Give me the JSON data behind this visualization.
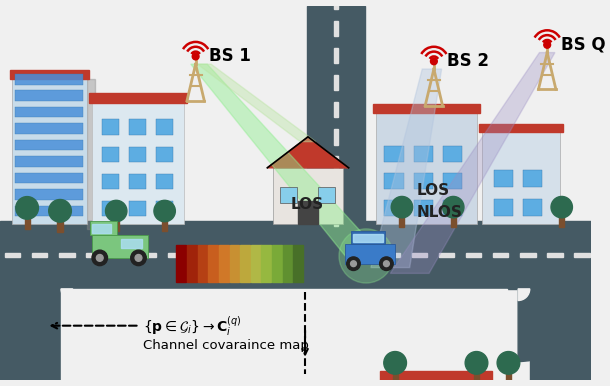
{
  "bg_color": "#f0f0f0",
  "road_color": "#455a64",
  "marking_color": "#e0e0e0",
  "tree_top_color": "#2d6a4f",
  "tree_trunk_color": "#7b4f2e",
  "antenna_color": "#c8a96e",
  "roof_color": "#c0392b",
  "win_color": "#5dade2",
  "win_color2": "#87ceeb",
  "green_beam": "#90ee90",
  "blue_beam": "#b0c4de",
  "purple_beam": "#9b8ec4",
  "van_color": "#7bc67e",
  "car_color": "#3a7bc8",
  "bs1_label": "BS 1",
  "bs2_label": "BS 2",
  "bsq_label": "BS Q",
  "los_label": "LOS",
  "nlos_label": "NLOS",
  "caption": "Channel covaraince map",
  "figsize": [
    6.1,
    3.86
  ],
  "dpi": 100
}
